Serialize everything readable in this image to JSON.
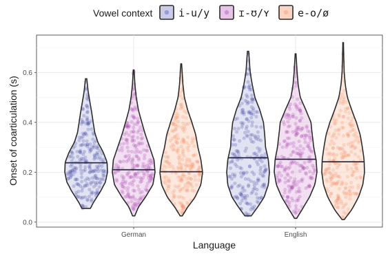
{
  "chart_data": {
    "type": "violin",
    "xlabel": "Language",
    "ylabel": "Onset of coarticulation (s)",
    "ylim": [
      -0.02,
      0.75
    ],
    "yticks": [
      0.0,
      0.2,
      0.4,
      0.6
    ],
    "ytick_labels": [
      "0.0",
      "0.2",
      "0.4",
      "0.6"
    ],
    "categories": [
      "German",
      "English"
    ],
    "grid": true,
    "legend": {
      "title": "Vowel context",
      "position": "top",
      "entries": [
        "i-u/y",
        "ɪ-ʊ/ʏ",
        "e-o/ø"
      ]
    },
    "series": [
      {
        "name": "i-u/y",
        "color": "#3b3fa0",
        "fill": "#c9cbe8",
        "groups": [
          {
            "category": "German",
            "min": 0.055,
            "max": 0.575,
            "median": 0.238,
            "density": [
              [
                0.055,
                0.2
              ],
              [
                0.08,
                0.35
              ],
              [
                0.12,
                0.65
              ],
              [
                0.16,
                0.9
              ],
              [
                0.2,
                1.0
              ],
              [
                0.24,
                0.98
              ],
              [
                0.28,
                0.8
              ],
              [
                0.32,
                0.55
              ],
              [
                0.36,
                0.4
              ],
              [
                0.4,
                0.33
              ],
              [
                0.44,
                0.26
              ],
              [
                0.48,
                0.18
              ],
              [
                0.52,
                0.1
              ],
              [
                0.575,
                0.03
              ]
            ]
          },
          {
            "category": "English",
            "min": 0.025,
            "max": 0.685,
            "median": 0.258,
            "density": [
              [
                0.025,
                0.15
              ],
              [
                0.06,
                0.45
              ],
              [
                0.1,
                0.75
              ],
              [
                0.15,
                0.95
              ],
              [
                0.2,
                1.0
              ],
              [
                0.25,
                0.95
              ],
              [
                0.3,
                0.82
              ],
              [
                0.35,
                0.78
              ],
              [
                0.4,
                0.72
              ],
              [
                0.45,
                0.55
              ],
              [
                0.5,
                0.32
              ],
              [
                0.55,
                0.2
              ],
              [
                0.6,
                0.1
              ],
              [
                0.685,
                0.03
              ]
            ]
          }
        ]
      },
      {
        "name": "ɪ-ʊ/ʏ",
        "color": "#a23aa8",
        "fill": "#e7c4e8",
        "groups": [
          {
            "category": "German",
            "min": 0.025,
            "max": 0.61,
            "median": 0.21,
            "density": [
              [
                0.025,
                0.05
              ],
              [
                0.06,
                0.22
              ],
              [
                0.1,
                0.55
              ],
              [
                0.15,
                0.9
              ],
              [
                0.2,
                1.0
              ],
              [
                0.25,
                0.95
              ],
              [
                0.3,
                0.75
              ],
              [
                0.35,
                0.55
              ],
              [
                0.4,
                0.38
              ],
              [
                0.45,
                0.22
              ],
              [
                0.5,
                0.12
              ],
              [
                0.55,
                0.06
              ],
              [
                0.61,
                0.02
              ]
            ]
          },
          {
            "category": "English",
            "min": 0.015,
            "max": 0.675,
            "median": 0.252,
            "density": [
              [
                0.015,
                0.05
              ],
              [
                0.05,
                0.3
              ],
              [
                0.1,
                0.65
              ],
              [
                0.15,
                0.9
              ],
              [
                0.2,
                1.0
              ],
              [
                0.25,
                0.96
              ],
              [
                0.3,
                0.85
              ],
              [
                0.35,
                0.78
              ],
              [
                0.4,
                0.72
              ],
              [
                0.45,
                0.48
              ],
              [
                0.5,
                0.22
              ],
              [
                0.55,
                0.12
              ],
              [
                0.6,
                0.07
              ],
              [
                0.675,
                0.02
              ]
            ]
          }
        ]
      },
      {
        "name": "e-o/ø",
        "color": "#f08a5d",
        "fill": "#fbd5c2",
        "groups": [
          {
            "category": "German",
            "min": 0.025,
            "max": 0.635,
            "median": 0.202,
            "density": [
              [
                0.025,
                0.05
              ],
              [
                0.06,
                0.3
              ],
              [
                0.1,
                0.65
              ],
              [
                0.15,
                0.92
              ],
              [
                0.2,
                1.0
              ],
              [
                0.25,
                0.92
              ],
              [
                0.3,
                0.78
              ],
              [
                0.35,
                0.68
              ],
              [
                0.4,
                0.5
              ],
              [
                0.45,
                0.3
              ],
              [
                0.5,
                0.15
              ],
              [
                0.55,
                0.08
              ],
              [
                0.635,
                0.02
              ]
            ]
          },
          {
            "category": "English",
            "min": 0.01,
            "max": 0.72,
            "median": 0.242,
            "density": [
              [
                0.01,
                0.05
              ],
              [
                0.05,
                0.4
              ],
              [
                0.1,
                0.72
              ],
              [
                0.15,
                0.92
              ],
              [
                0.2,
                1.0
              ],
              [
                0.25,
                0.98
              ],
              [
                0.3,
                0.9
              ],
              [
                0.35,
                0.8
              ],
              [
                0.4,
                0.62
              ],
              [
                0.45,
                0.4
              ],
              [
                0.5,
                0.2
              ],
              [
                0.55,
                0.1
              ],
              [
                0.6,
                0.05
              ],
              [
                0.72,
                0.01
              ]
            ]
          }
        ]
      }
    ]
  }
}
